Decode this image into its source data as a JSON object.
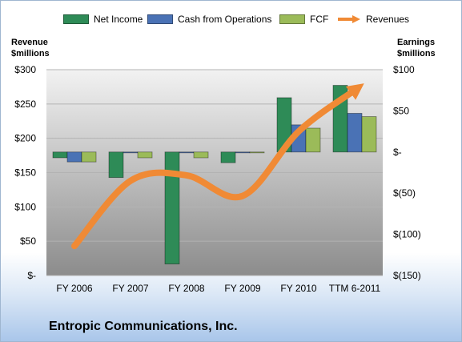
{
  "legend": {
    "net_income": "Net Income",
    "cash_from_operations": "Cash from Operations",
    "fcf": "FCF",
    "revenues": "Revenues"
  },
  "axis": {
    "left_title_line1": "Revenue",
    "left_title_line2": "$millions",
    "right_title_line1": "Earnings",
    "right_title_line2": "$millions"
  },
  "company_name": "Entropic Communications, Inc.",
  "colors": {
    "net_income": "#2e8b57",
    "cash_from_operations": "#4a72b5",
    "fcf": "#9bbb59",
    "revenues": "#f08a35",
    "plot_top": "#f2f2f2",
    "plot_bottom": "#8c8c8c"
  },
  "chart_data": {
    "type": "bar",
    "categories": [
      "FY 2006",
      "FY 2007",
      "FY 2008",
      "FY 2009",
      "FY 2010",
      "TTM 6-2011"
    ],
    "series": [
      {
        "name": "Net Income",
        "axis": "right",
        "values": [
          -7,
          -31,
          -136,
          -13,
          66,
          81
        ]
      },
      {
        "name": "Cash from Operations",
        "axis": "right",
        "values": [
          -12,
          -1,
          -1,
          -1,
          33,
          47
        ]
      },
      {
        "name": "FCF",
        "axis": "right",
        "values": [
          -12,
          -7,
          -7,
          -1,
          29,
          43
        ]
      },
      {
        "name": "Revenues",
        "axis": "left",
        "type": "line",
        "values": [
          43,
          138,
          146,
          116,
          210,
          270
        ]
      }
    ],
    "left_axis": {
      "title": "Revenue $millions",
      "ylim": [
        0,
        300
      ],
      "ticks": [
        "$-",
        "$50",
        "$100",
        "$150",
        "$200",
        "$250",
        "$300"
      ]
    },
    "right_axis": {
      "title": "Earnings $millions",
      "ylim": [
        -150,
        100
      ],
      "ticks": [
        "$(150)",
        "$(100)",
        "$(50)",
        "$-",
        "$50",
        "$100"
      ]
    },
    "grid": true,
    "legend_position": "top"
  }
}
